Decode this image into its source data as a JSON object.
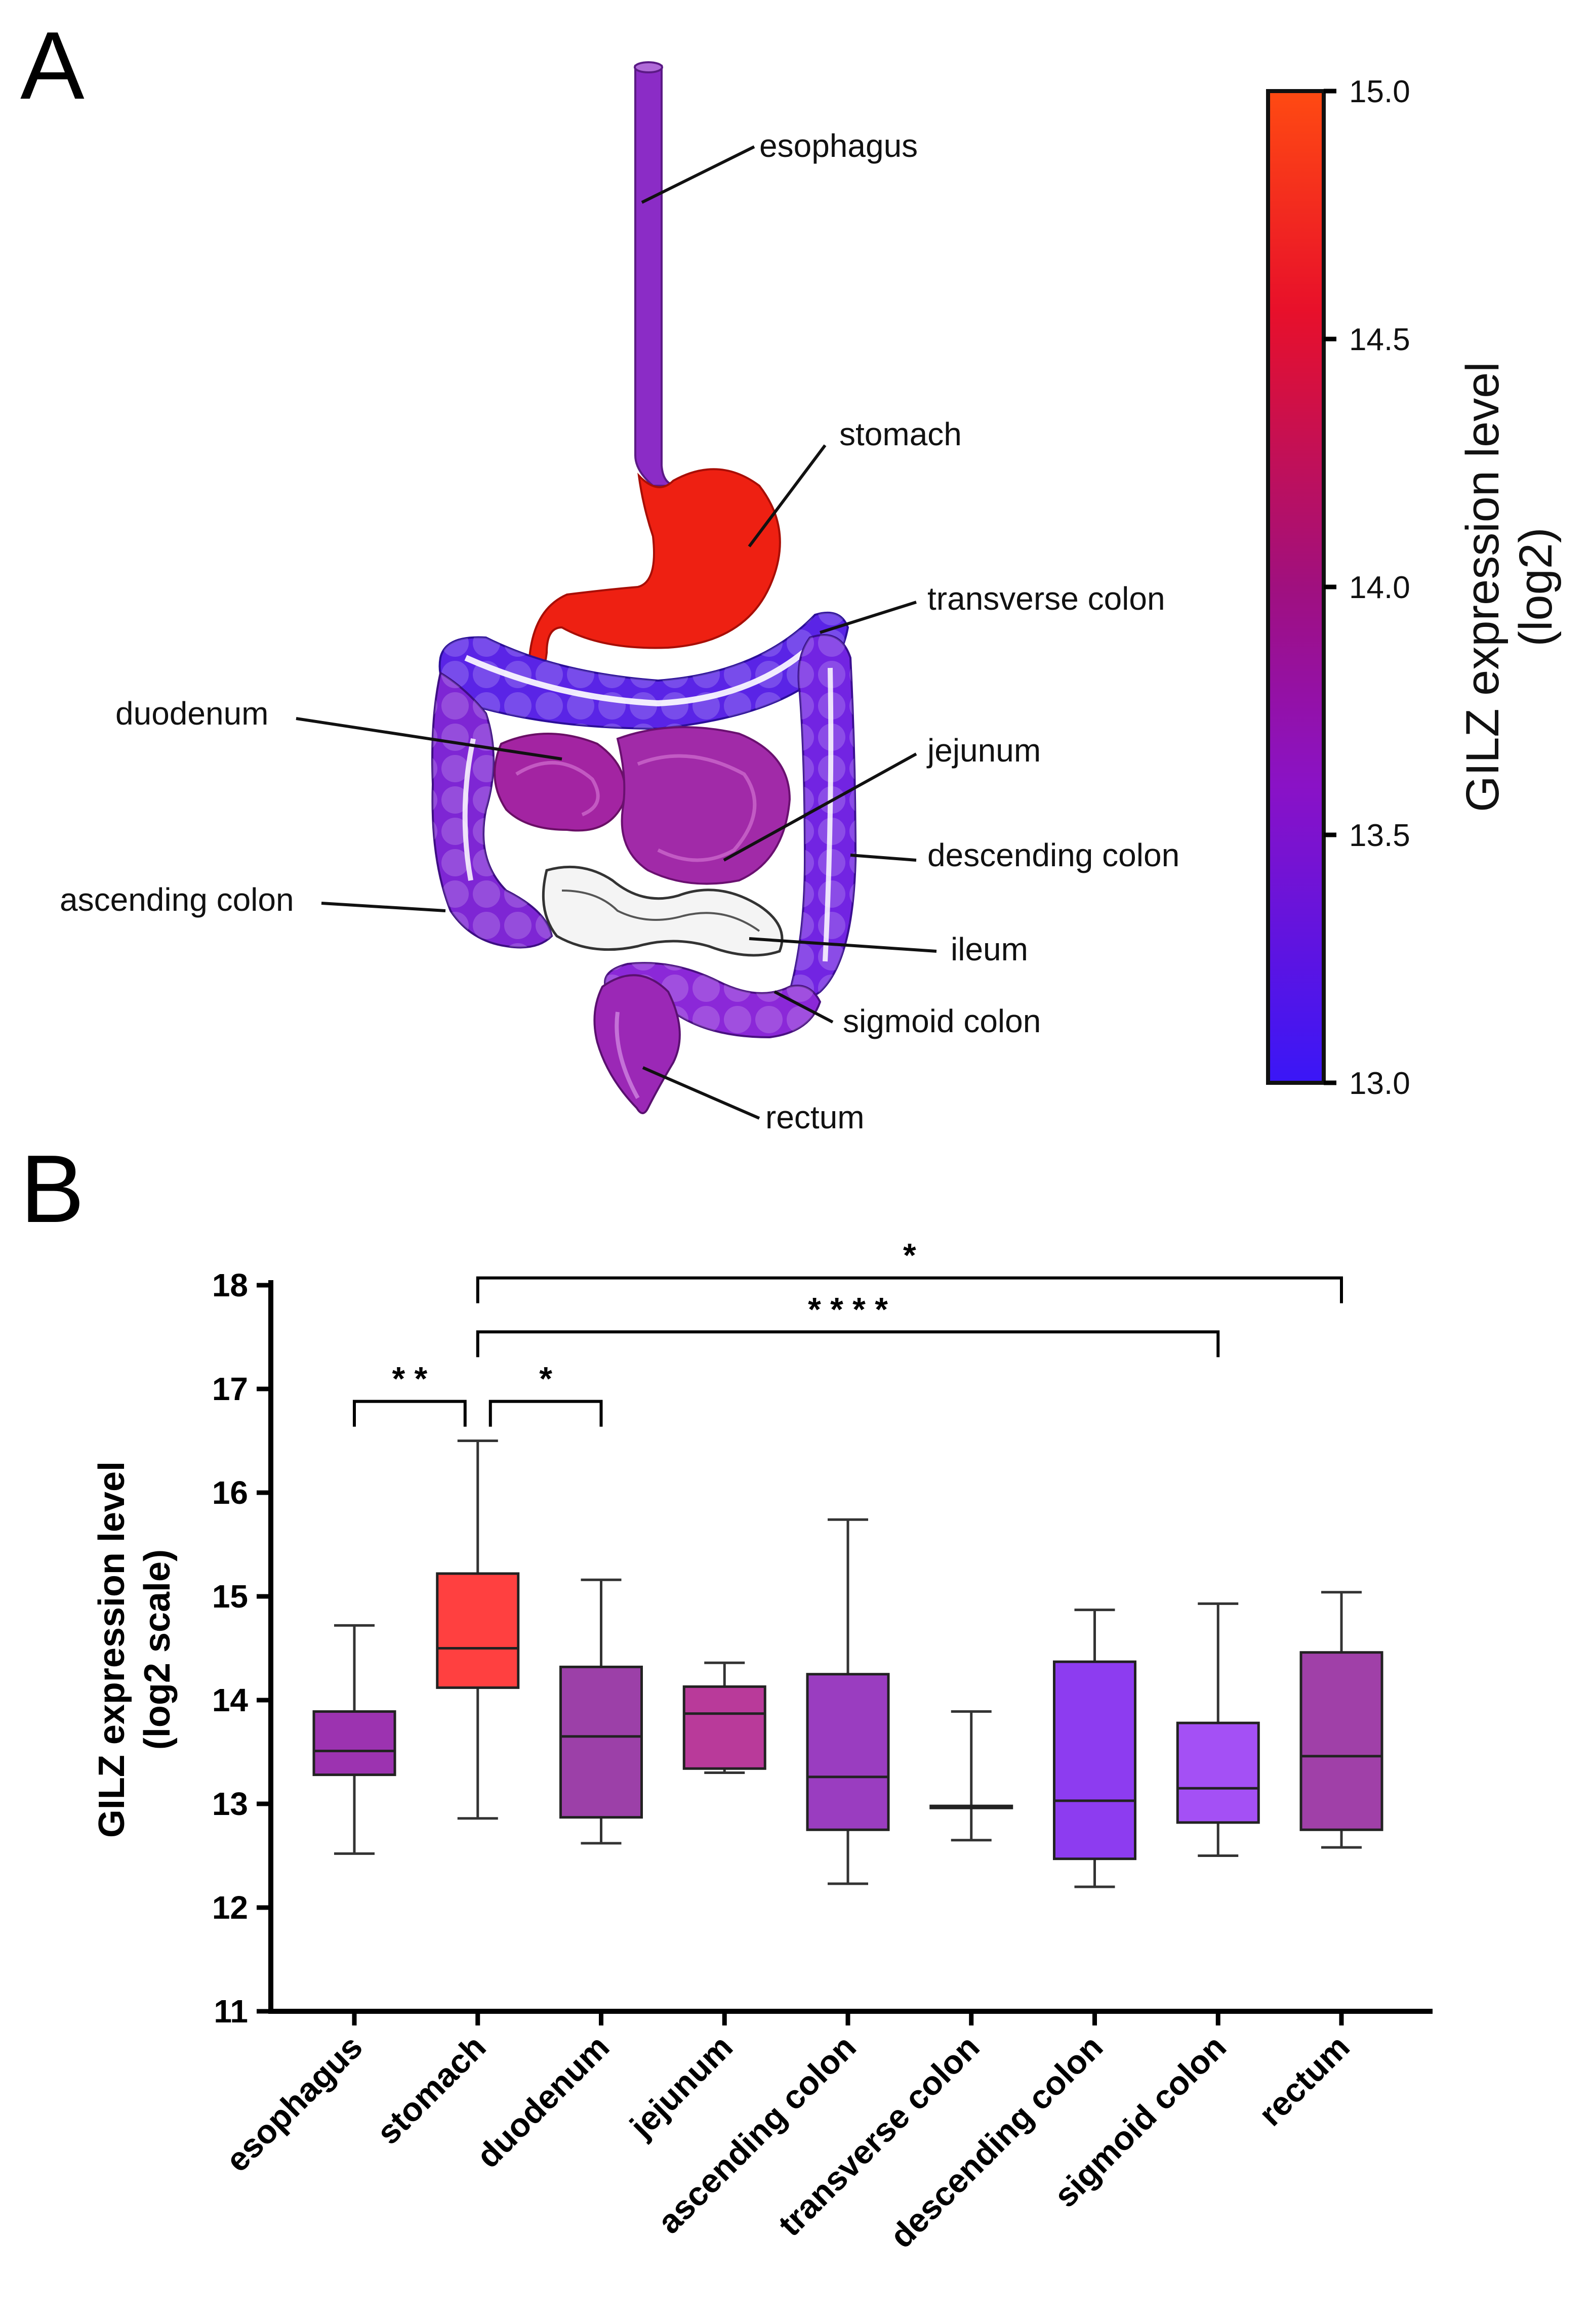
{
  "panel_a": {
    "letter": "A",
    "organ_labels": [
      "esophagus",
      "stomach",
      "transverse colon",
      "duodenum",
      "jejunum",
      "descending colon",
      "ascending colon",
      "ileum",
      "sigmoid colon",
      "rectum"
    ],
    "colorbar": {
      "title_line1": "GILZ expression level",
      "title_line2": "(log2)",
      "ticks": [
        "15.0",
        "14.5",
        "14.0",
        "13.5",
        "13.0"
      ],
      "min": 13.0,
      "max": 15.0,
      "colors": {
        "low": "#3a16f7",
        "mid_low": "#8a12c6",
        "mid": "#a0107f",
        "mid_high": "#e8102a",
        "high": "#ff4a12"
      }
    },
    "organ_colors": {
      "esophagus": "#8b2cc6",
      "stomach": "#ee2012",
      "transverse_colon": "#5a24e6",
      "duodenum": "#a324a2",
      "jejunum": "#a12aa8",
      "descending_colon": "#7224e2",
      "ascending_colon": "#7e26d4",
      "sigmoid_colon": "#8b28d8",
      "rectum": "#9b28b6"
    }
  },
  "panel_b": {
    "letter": "B"
  },
  "chart_data": {
    "type": "box",
    "title": "",
    "ylabel_line1": "GILZ expression level",
    "ylabel_line2": "(log2 scale)",
    "xlabel": "",
    "ylim": [
      11,
      18
    ],
    "yticks": [
      "11",
      "12",
      "13",
      "14",
      "15",
      "16",
      "17",
      "18"
    ],
    "categories": [
      "esophagus",
      "stomach",
      "duodenum",
      "jejunum",
      "ascending colon",
      "transverse colon",
      "descending colon",
      "sigmoid colon",
      "rectum"
    ],
    "boxes": [
      {
        "name": "esophagus",
        "min": 12.52,
        "q1": 13.28,
        "median": 13.51,
        "q3": 13.89,
        "max": 14.72,
        "color": "#9c33b0"
      },
      {
        "name": "stomach",
        "min": 12.86,
        "q1": 14.12,
        "median": 14.5,
        "q3": 15.22,
        "max": 16.5,
        "color": "#ff4040"
      },
      {
        "name": "duodenum",
        "min": 12.62,
        "q1": 12.87,
        "median": 13.65,
        "q3": 14.32,
        "max": 15.16,
        "color": "#9c40a8"
      },
      {
        "name": "jejunum",
        "min": 13.3,
        "q1": 13.34,
        "median": 13.87,
        "q3": 14.13,
        "max": 14.36,
        "color": "#b93a9a"
      },
      {
        "name": "ascending colon",
        "min": 12.23,
        "q1": 12.75,
        "median": 13.26,
        "q3": 14.25,
        "max": 15.74,
        "color": "#9a3dc0"
      },
      {
        "name": "transverse colon",
        "min": 12.65,
        "q1": 12.96,
        "median": 12.97,
        "q3": 12.98,
        "max": 13.89,
        "color": "#7a40e0"
      },
      {
        "name": "descending colon",
        "min": 12.2,
        "q1": 12.47,
        "median": 13.03,
        "q3": 14.37,
        "max": 14.87,
        "color": "#8d3cf0"
      },
      {
        "name": "sigmoid colon",
        "min": 12.5,
        "q1": 12.82,
        "median": 13.15,
        "q3": 13.78,
        "max": 14.93,
        "color": "#a450f5"
      },
      {
        "name": "rectum",
        "min": 12.58,
        "q1": 12.75,
        "median": 13.46,
        "q3": 14.46,
        "max": 15.04,
        "color": "#a040a8"
      }
    ],
    "significance": [
      {
        "from": "esophagus",
        "to": "stomach",
        "y": 16.88,
        "label": "* *"
      },
      {
        "from": "stomach",
        "to": "duodenum",
        "y": 16.88,
        "label": "*"
      },
      {
        "from": "stomach",
        "to": "sigmoid colon",
        "y": 17.55,
        "label": "* * * *"
      },
      {
        "from": "stomach",
        "to": "rectum",
        "y": 18.07,
        "label": "*"
      }
    ]
  }
}
